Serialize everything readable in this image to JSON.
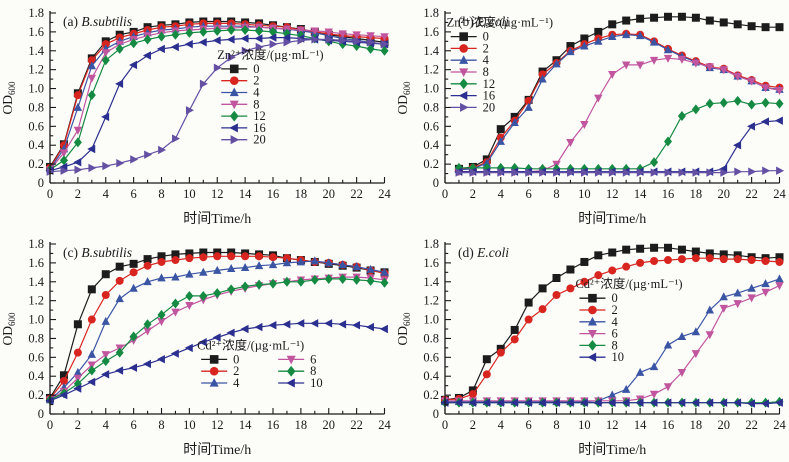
{
  "figure": {
    "background": "#fcfcf9",
    "axis_color": "#1a1a1a",
    "xlabel": "时间Time/h",
    "ylabel_main": "OD",
    "ylabel_sub": "600"
  },
  "chart_data": [
    {
      "id": "a",
      "type": "line",
      "title_prefix": "(a)",
      "title_species": "B.subtilis",
      "xlabel": "时间Time/h",
      "ylabel": "OD",
      "ylabel_sub": "600",
      "xlim": [
        0,
        24
      ],
      "ylim": [
        0,
        1.8
      ],
      "xtick_step": 2,
      "ytick_step": 0.2,
      "grid": false,
      "legend": {
        "title": "Zn²⁺浓度/(µg·mL⁻¹)",
        "fx": 0.5,
        "fy": 0.27,
        "columns": 1
      },
      "x": [
        0,
        1,
        2,
        3,
        4,
        5,
        6,
        7,
        8,
        9,
        10,
        11,
        12,
        13,
        14,
        15,
        16,
        17,
        18,
        19,
        20,
        21,
        22,
        23,
        24
      ],
      "series": [
        {
          "label": "0",
          "color": "#1c1c1c",
          "marker": "square",
          "values": [
            0.17,
            0.41,
            0.95,
            1.32,
            1.5,
            1.57,
            1.6,
            1.65,
            1.67,
            1.68,
            1.7,
            1.71,
            1.71,
            1.71,
            1.7,
            1.69,
            1.67,
            1.65,
            1.63,
            1.6,
            1.57,
            1.55,
            1.53,
            1.51,
            1.49
          ]
        },
        {
          "label": "2",
          "color": "#d8251f",
          "marker": "circle",
          "values": [
            0.16,
            0.4,
            0.93,
            1.3,
            1.47,
            1.54,
            1.58,
            1.62,
            1.65,
            1.66,
            1.68,
            1.69,
            1.69,
            1.69,
            1.68,
            1.67,
            1.66,
            1.65,
            1.62,
            1.6,
            1.58,
            1.56,
            1.55,
            1.54,
            1.53
          ]
        },
        {
          "label": "4",
          "color": "#3b55a5",
          "marker": "triangle-up",
          "values": [
            0.15,
            0.36,
            0.8,
            1.24,
            1.42,
            1.5,
            1.55,
            1.59,
            1.62,
            1.63,
            1.65,
            1.66,
            1.66,
            1.66,
            1.66,
            1.65,
            1.64,
            1.63,
            1.61,
            1.59,
            1.56,
            1.53,
            1.51,
            1.49,
            1.47
          ]
        },
        {
          "label": "8",
          "color": "#c1569f",
          "marker": "triangle-down",
          "values": [
            0.14,
            0.32,
            0.56,
            1.11,
            1.38,
            1.47,
            1.52,
            1.56,
            1.59,
            1.61,
            1.62,
            1.63,
            1.64,
            1.64,
            1.65,
            1.65,
            1.64,
            1.63,
            1.62,
            1.61,
            1.6,
            1.58,
            1.57,
            1.56,
            1.55
          ]
        },
        {
          "label": "12",
          "color": "#148a42",
          "marker": "diamond",
          "values": [
            0.14,
            0.24,
            0.43,
            0.93,
            1.3,
            1.42,
            1.48,
            1.52,
            1.55,
            1.57,
            1.59,
            1.6,
            1.61,
            1.62,
            1.62,
            1.61,
            1.6,
            1.58,
            1.56,
            1.53,
            1.5,
            1.47,
            1.45,
            1.42,
            1.4
          ]
        },
        {
          "label": "16",
          "color": "#2b2f8f",
          "marker": "triangle-left",
          "values": [
            0.13,
            0.17,
            0.22,
            0.36,
            0.7,
            1.05,
            1.25,
            1.35,
            1.42,
            1.44,
            1.47,
            1.49,
            1.51,
            1.52,
            1.53,
            1.53,
            1.54,
            1.54,
            1.53,
            1.52,
            1.51,
            1.5,
            1.49,
            1.48,
            1.47
          ]
        },
        {
          "label": "20",
          "color": "#6350a3",
          "marker": "triangle-right",
          "values": [
            0.12,
            0.13,
            0.14,
            0.16,
            0.18,
            0.21,
            0.25,
            0.3,
            0.35,
            0.47,
            0.77,
            1.05,
            1.22,
            1.33,
            1.4,
            1.44,
            1.47,
            1.49,
            1.51,
            1.52,
            1.52,
            1.51,
            1.5,
            1.49,
            1.47
          ]
        }
      ]
    },
    {
      "id": "b",
      "type": "line",
      "title_prefix": "(b)",
      "title_species": "E.coli",
      "xlabel": "时间Time/h",
      "ylabel": "OD",
      "ylabel_sub": "600",
      "xlim": [
        0,
        24
      ],
      "ylim": [
        0,
        1.8
      ],
      "xtick_step": 2,
      "ytick_step": 0.2,
      "grid": false,
      "legend": {
        "title": "Zn²⁺浓度/(µg·mL⁻¹)",
        "fx": 0.005,
        "fy": 0.08,
        "columns": 1
      },
      "x": [
        1,
        2,
        3,
        4,
        5,
        6,
        7,
        8,
        9,
        10,
        11,
        12,
        13,
        14,
        15,
        16,
        17,
        18,
        19,
        20,
        21,
        22,
        23,
        24
      ],
      "series": [
        {
          "label": "0",
          "color": "#1c1c1c",
          "marker": "square",
          "values": [
            0.15,
            0.17,
            0.25,
            0.57,
            0.7,
            0.88,
            1.18,
            1.3,
            1.45,
            1.53,
            1.6,
            1.68,
            1.72,
            1.74,
            1.75,
            1.76,
            1.76,
            1.75,
            1.72,
            1.7,
            1.68,
            1.66,
            1.65,
            1.65
          ]
        },
        {
          "label": "2",
          "color": "#d8251f",
          "marker": "circle",
          "values": [
            0.14,
            0.16,
            0.22,
            0.48,
            0.66,
            0.87,
            1.15,
            1.27,
            1.4,
            1.47,
            1.53,
            1.57,
            1.58,
            1.57,
            1.5,
            1.42,
            1.35,
            1.29,
            1.23,
            1.21,
            1.14,
            1.09,
            1.03,
            1.01
          ]
        },
        {
          "label": "4",
          "color": "#3b55a5",
          "marker": "triangle-up",
          "values": [
            0.14,
            0.15,
            0.21,
            0.44,
            0.64,
            0.8,
            1.1,
            1.26,
            1.39,
            1.45,
            1.5,
            1.55,
            1.57,
            1.56,
            1.49,
            1.41,
            1.34,
            1.28,
            1.22,
            1.2,
            1.13,
            1.08,
            1.01,
            0.99
          ]
        },
        {
          "label": "8",
          "color": "#c1569f",
          "marker": "triangle-down",
          "values": [
            0.12,
            0.12,
            0.12,
            0.12,
            0.12,
            0.12,
            0.13,
            0.2,
            0.43,
            0.62,
            0.9,
            1.15,
            1.25,
            1.25,
            1.3,
            1.32,
            1.31,
            1.27,
            1.23,
            1.2,
            1.13,
            1.08,
            1.01,
            0.98
          ]
        },
        {
          "label": "12",
          "color": "#148a42",
          "marker": "diamond",
          "values": [
            0.16,
            0.16,
            0.16,
            0.16,
            0.16,
            0.15,
            0.15,
            0.15,
            0.15,
            0.15,
            0.15,
            0.15,
            0.15,
            0.15,
            0.22,
            0.44,
            0.71,
            0.78,
            0.84,
            0.85,
            0.87,
            0.83,
            0.85,
            0.84
          ]
        },
        {
          "label": "16",
          "color": "#2b2f8f",
          "marker": "triangle-left",
          "values": [
            0.12,
            0.12,
            0.12,
            0.12,
            0.12,
            0.12,
            0.12,
            0.12,
            0.12,
            0.12,
            0.12,
            0.12,
            0.12,
            0.12,
            0.12,
            0.12,
            0.12,
            0.12,
            0.12,
            0.15,
            0.4,
            0.6,
            0.65,
            0.66
          ]
        },
        {
          "label": "20",
          "color": "#6350a3",
          "marker": "triangle-right",
          "values": [
            0.11,
            0.11,
            0.11,
            0.11,
            0.11,
            0.11,
            0.11,
            0.11,
            0.11,
            0.11,
            0.11,
            0.11,
            0.11,
            0.11,
            0.11,
            0.11,
            0.11,
            0.11,
            0.11,
            0.11,
            0.12,
            0.12,
            0.13,
            0.13
          ]
        }
      ]
    },
    {
      "id": "c",
      "type": "line",
      "title_prefix": "(c)",
      "title_species": "B.subtilis",
      "xlabel": "时间Time/h",
      "ylabel": "OD",
      "ylabel_sub": "600",
      "xlim": [
        0,
        24
      ],
      "ylim": [
        0,
        1.8
      ],
      "xtick_step": 2,
      "ytick_step": 0.2,
      "grid": false,
      "legend": {
        "title": "Cd²⁺浓度/(µg·mL⁻¹)",
        "fx": 0.44,
        "fy": 0.62,
        "columns": 2
      },
      "x": [
        0,
        1,
        2,
        3,
        4,
        5,
        6,
        7,
        8,
        9,
        10,
        11,
        12,
        13,
        14,
        15,
        16,
        17,
        18,
        19,
        20,
        21,
        22,
        23,
        24
      ],
      "series": [
        {
          "label": "0",
          "color": "#1c1c1c",
          "marker": "square",
          "values": [
            0.17,
            0.41,
            0.95,
            1.32,
            1.48,
            1.56,
            1.59,
            1.64,
            1.67,
            1.69,
            1.7,
            1.71,
            1.71,
            1.71,
            1.7,
            1.69,
            1.68,
            1.65,
            1.63,
            1.61,
            1.59,
            1.57,
            1.55,
            1.52,
            1.5
          ]
        },
        {
          "label": "2",
          "color": "#d8251f",
          "marker": "circle",
          "values": [
            0.16,
            0.35,
            0.65,
            1.0,
            1.26,
            1.41,
            1.5,
            1.57,
            1.61,
            1.63,
            1.65,
            1.66,
            1.67,
            1.67,
            1.67,
            1.67,
            1.66,
            1.65,
            1.63,
            1.61,
            1.6,
            1.58,
            1.56,
            1.52,
            1.49
          ]
        },
        {
          "label": "4",
          "color": "#3b55a5",
          "marker": "triangle-up",
          "values": [
            0.15,
            0.28,
            0.44,
            0.63,
            0.98,
            1.22,
            1.33,
            1.4,
            1.44,
            1.45,
            1.48,
            1.5,
            1.52,
            1.54,
            1.55,
            1.57,
            1.58,
            1.6,
            1.61,
            1.62,
            1.6,
            1.58,
            1.56,
            1.53,
            1.5
          ]
        },
        {
          "label": "6",
          "color": "#c1569f",
          "marker": "triangle-down",
          "values": [
            0.15,
            0.24,
            0.38,
            0.52,
            0.63,
            0.7,
            0.78,
            0.88,
            0.98,
            1.08,
            1.15,
            1.21,
            1.26,
            1.3,
            1.33,
            1.36,
            1.38,
            1.4,
            1.42,
            1.43,
            1.44,
            1.45,
            1.45,
            1.44,
            1.42
          ]
        },
        {
          "label": "8",
          "color": "#148a42",
          "marker": "diamond",
          "values": [
            0.15,
            0.22,
            0.32,
            0.46,
            0.56,
            0.65,
            0.82,
            0.95,
            1.05,
            1.17,
            1.25,
            1.25,
            1.28,
            1.32,
            1.35,
            1.37,
            1.38,
            1.4,
            1.4,
            1.42,
            1.43,
            1.43,
            1.42,
            1.41,
            1.39
          ]
        },
        {
          "label": "10",
          "color": "#2b2f8f",
          "marker": "triangle-left",
          "values": [
            0.14,
            0.2,
            0.27,
            0.34,
            0.42,
            0.46,
            0.49,
            0.53,
            0.58,
            0.64,
            0.7,
            0.76,
            0.81,
            0.86,
            0.9,
            0.92,
            0.94,
            0.95,
            0.96,
            0.96,
            0.96,
            0.95,
            0.94,
            0.92,
            0.9
          ]
        }
      ]
    },
    {
      "id": "d",
      "type": "line",
      "title_prefix": "(d)",
      "title_species": "E.coli",
      "xlabel": "时间Time/h",
      "ylabel": "OD",
      "ylabel_sub": "600",
      "xlim": [
        0,
        24
      ],
      "ylim": [
        0,
        1.8
      ],
      "xtick_step": 2,
      "ytick_step": 0.2,
      "grid": false,
      "legend": {
        "title": "Cd²⁺浓度/(µg·mL⁻¹)",
        "fx": 0.39,
        "fy": 0.26,
        "columns": 1
      },
      "x": [
        0,
        1,
        2,
        3,
        4,
        5,
        6,
        7,
        8,
        9,
        10,
        11,
        12,
        13,
        14,
        15,
        16,
        17,
        18,
        19,
        20,
        21,
        22,
        23,
        24
      ],
      "series": [
        {
          "label": "0",
          "color": "#1c1c1c",
          "marker": "square",
          "values": [
            0.15,
            0.17,
            0.25,
            0.58,
            0.69,
            0.89,
            1.18,
            1.33,
            1.44,
            1.53,
            1.61,
            1.68,
            1.71,
            1.74,
            1.75,
            1.76,
            1.76,
            1.74,
            1.72,
            1.7,
            1.69,
            1.68,
            1.66,
            1.65,
            1.66
          ]
        },
        {
          "label": "2",
          "color": "#d8251f",
          "marker": "circle",
          "values": [
            0.15,
            0.16,
            0.21,
            0.42,
            0.65,
            0.79,
            1.0,
            1.11,
            1.26,
            1.33,
            1.4,
            1.47,
            1.52,
            1.56,
            1.6,
            1.62,
            1.63,
            1.64,
            1.65,
            1.65,
            1.64,
            1.64,
            1.63,
            1.62,
            1.61
          ]
        },
        {
          "label": "4",
          "color": "#3b55a5",
          "marker": "triangle-up",
          "values": [
            0.13,
            0.13,
            0.13,
            0.13,
            0.13,
            0.13,
            0.13,
            0.13,
            0.13,
            0.13,
            0.13,
            0.14,
            0.2,
            0.26,
            0.44,
            0.5,
            0.73,
            0.82,
            0.87,
            1.1,
            1.24,
            1.28,
            1.33,
            1.38,
            1.43
          ]
        },
        {
          "label": "6",
          "color": "#c1569f",
          "marker": "triangle-down",
          "values": [
            0.14,
            0.14,
            0.14,
            0.14,
            0.14,
            0.14,
            0.14,
            0.14,
            0.14,
            0.14,
            0.14,
            0.14,
            0.14,
            0.14,
            0.16,
            0.21,
            0.29,
            0.44,
            0.64,
            0.84,
            1.12,
            1.17,
            1.23,
            1.29,
            1.36
          ]
        },
        {
          "label": "8",
          "color": "#148a42",
          "marker": "diamond",
          "values": [
            0.12,
            0.12,
            0.12,
            0.12,
            0.12,
            0.12,
            0.12,
            0.12,
            0.12,
            0.12,
            0.12,
            0.12,
            0.12,
            0.12,
            0.12,
            0.12,
            0.12,
            0.12,
            0.12,
            0.12,
            0.12,
            0.12,
            0.12,
            0.12,
            0.13
          ]
        },
        {
          "label": "10",
          "color": "#2b2f8f",
          "marker": "triangle-left",
          "values": [
            0.12,
            0.12,
            0.12,
            0.12,
            0.12,
            0.12,
            0.12,
            0.12,
            0.12,
            0.12,
            0.12,
            0.12,
            0.12,
            0.12,
            0.12,
            0.12,
            0.12,
            0.12,
            0.12,
            0.12,
            0.12,
            0.12,
            0.11,
            0.11,
            0.12
          ]
        }
      ]
    }
  ]
}
